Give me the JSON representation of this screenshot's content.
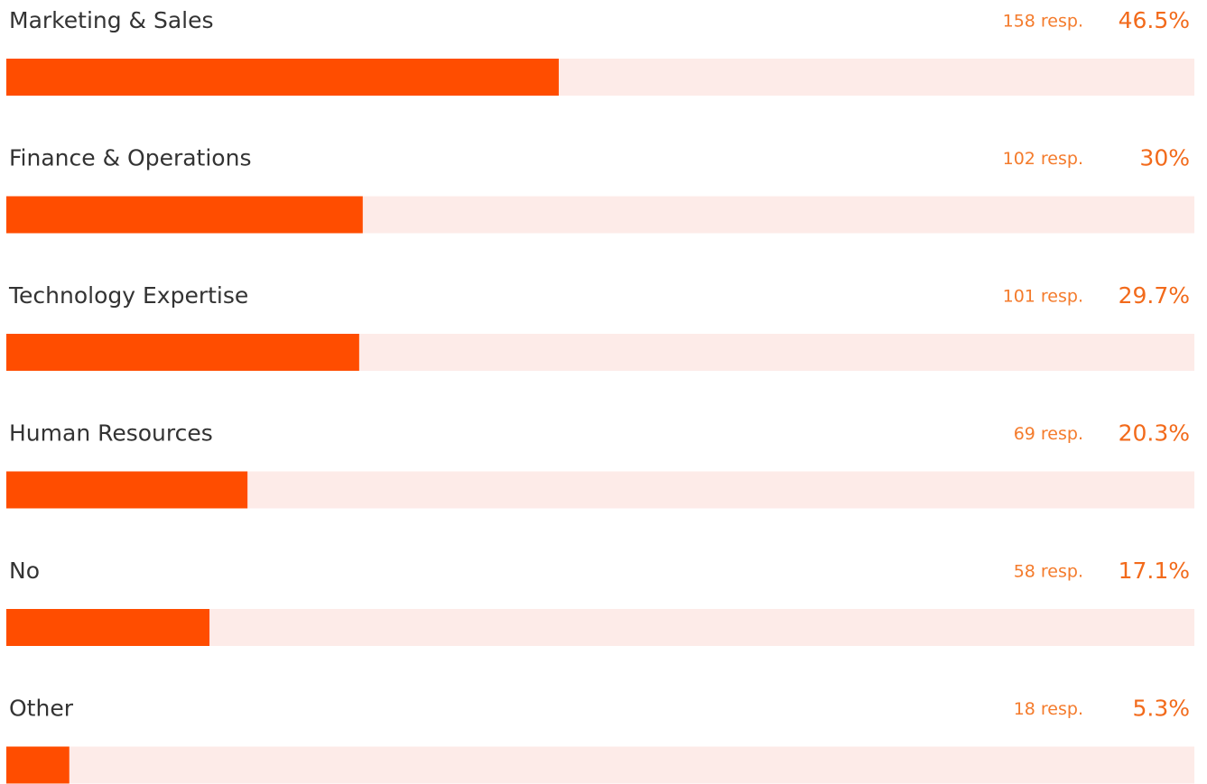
{
  "chart_data": {
    "type": "hbar",
    "categories": [
      "Marketing & Sales",
      "Finance & Operations",
      "Technology Expertise",
      "Human Resources",
      "No",
      "Other"
    ],
    "values": [
      46.5,
      30,
      29.7,
      20.3,
      17.1,
      5.3
    ],
    "value_labels": [
      "46.5%",
      "30%",
      "29.7%",
      "20.3%",
      "17.1%",
      "5.3%"
    ],
    "response_labels": [
      "158 resp.",
      "102 resp.",
      "101 resp.",
      "69 resp.",
      "58 resp.",
      "18 resp."
    ],
    "xlim": [
      0,
      100
    ],
    "color": "#ff4d00",
    "track_color": "#fdebe8"
  }
}
